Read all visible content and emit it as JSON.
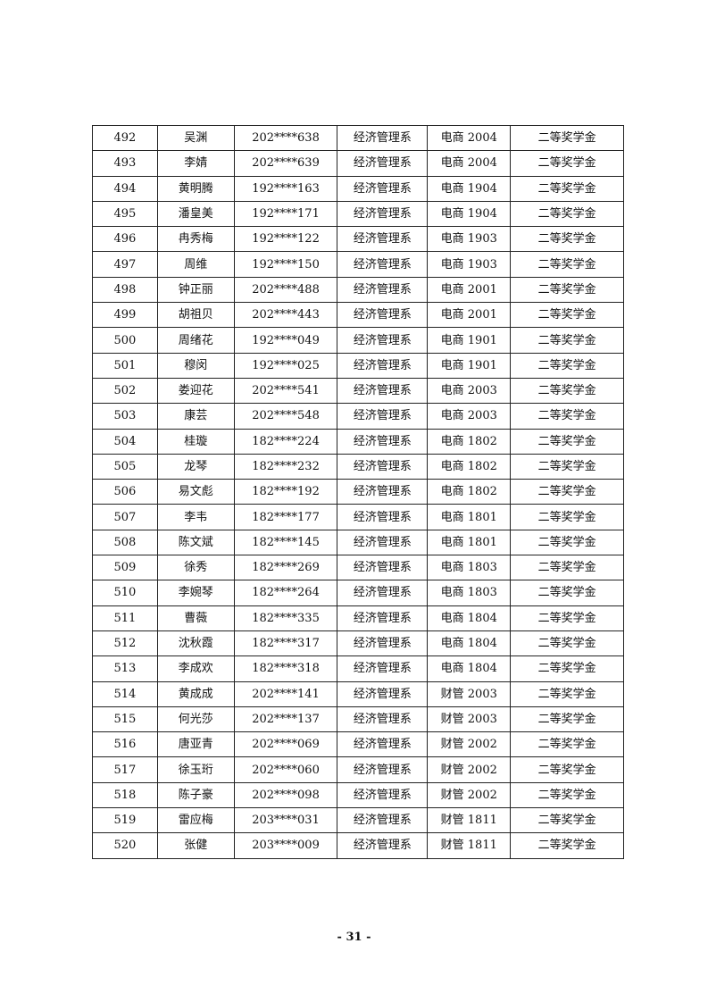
{
  "table": {
    "rows": [
      [
        "492",
        "吴渊",
        "202****638",
        "经济管理系",
        "电商 2004",
        "二等奖学金"
      ],
      [
        "493",
        "李婧",
        "202****639",
        "经济管理系",
        "电商 2004",
        "二等奖学金"
      ],
      [
        "494",
        "黄明腾",
        "192****163",
        "经济管理系",
        "电商 1904",
        "二等奖学金"
      ],
      [
        "495",
        "潘皇美",
        "192****171",
        "经济管理系",
        "电商 1904",
        "二等奖学金"
      ],
      [
        "496",
        "冉秀梅",
        "192****122",
        "经济管理系",
        "电商 1903",
        "二等奖学金"
      ],
      [
        "497",
        "周维",
        "192****150",
        "经济管理系",
        "电商 1903",
        "二等奖学金"
      ],
      [
        "498",
        "钟正丽",
        "202****488",
        "经济管理系",
        "电商 2001",
        "二等奖学金"
      ],
      [
        "499",
        "胡祖贝",
        "202****443",
        "经济管理系",
        "电商 2001",
        "二等奖学金"
      ],
      [
        "500",
        "周绪花",
        "192****049",
        "经济管理系",
        "电商 1901",
        "二等奖学金"
      ],
      [
        "501",
        "穆闵",
        "192****025",
        "经济管理系",
        "电商 1901",
        "二等奖学金"
      ],
      [
        "502",
        "娄迎花",
        "202****541",
        "经济管理系",
        "电商 2003",
        "二等奖学金"
      ],
      [
        "503",
        "康芸",
        "202****548",
        "经济管理系",
        "电商 2003",
        "二等奖学金"
      ],
      [
        "504",
        "桂璇",
        "182****224",
        "经济管理系",
        "电商 1802",
        "二等奖学金"
      ],
      [
        "505",
        "龙琴",
        "182****232",
        "经济管理系",
        "电商 1802",
        "二等奖学金"
      ],
      [
        "506",
        "易文彪",
        "182****192",
        "经济管理系",
        "电商 1802",
        "二等奖学金"
      ],
      [
        "507",
        "李韦",
        "182****177",
        "经济管理系",
        "电商 1801",
        "二等奖学金"
      ],
      [
        "508",
        "陈文斌",
        "182****145",
        "经济管理系",
        "电商 1801",
        "二等奖学金"
      ],
      [
        "509",
        "徐秀",
        "182****269",
        "经济管理系",
        "电商 1803",
        "二等奖学金"
      ],
      [
        "510",
        "李婉琴",
        "182****264",
        "经济管理系",
        "电商 1803",
        "二等奖学金"
      ],
      [
        "511",
        "曹薇",
        "182****335",
        "经济管理系",
        "电商 1804",
        "二等奖学金"
      ],
      [
        "512",
        "沈秋霞",
        "182****317",
        "经济管理系",
        "电商 1804",
        "二等奖学金"
      ],
      [
        "513",
        "李成欢",
        "182****318",
        "经济管理系",
        "电商 1804",
        "二等奖学金"
      ],
      [
        "514",
        "黄成成",
        "202****141",
        "经济管理系",
        "财管 2003",
        "二等奖学金"
      ],
      [
        "515",
        "何光莎",
        "202****137",
        "经济管理系",
        "财管 2003",
        "二等奖学金"
      ],
      [
        "516",
        "唐亚青",
        "202****069",
        "经济管理系",
        "财管 2002",
        "二等奖学金"
      ],
      [
        "517",
        "徐玉珩",
        "202****060",
        "经济管理系",
        "财管 2002",
        "二等奖学金"
      ],
      [
        "518",
        "陈子豪",
        "202****098",
        "经济管理系",
        "财管 2002",
        "二等奖学金"
      ],
      [
        "519",
        "雷应梅",
        "203****031",
        "经济管理系",
        "财管 1811",
        "二等奖学金"
      ],
      [
        "520",
        "张健",
        "203****009",
        "经济管理系",
        "财管 1811",
        "二等奖学金"
      ]
    ]
  },
  "footer": {
    "page_number": "- 31 -"
  }
}
